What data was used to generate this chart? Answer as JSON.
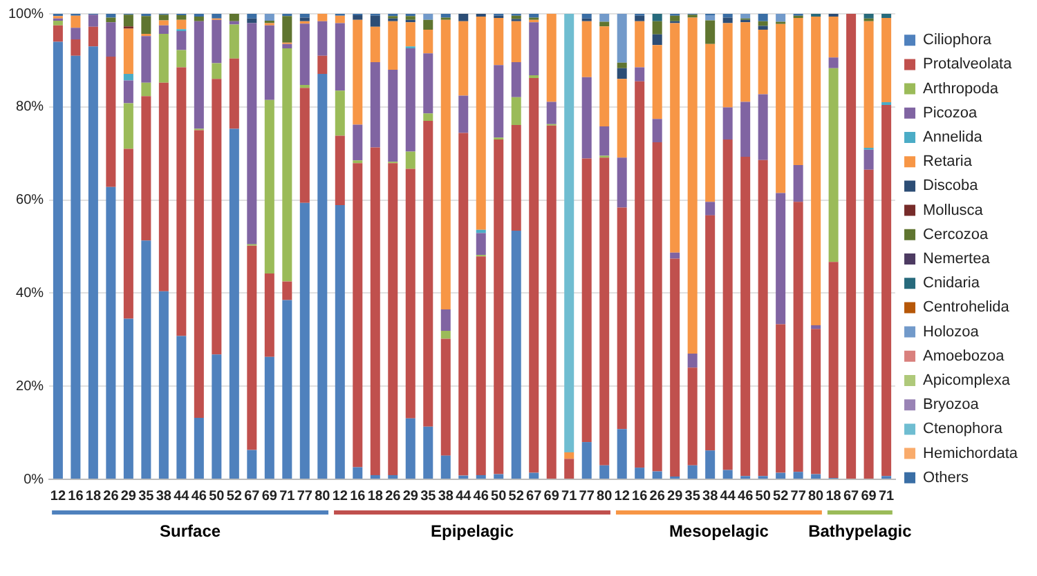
{
  "chart_data": {
    "type": "bar",
    "stacked": true,
    "categories": [
      "12",
      "16",
      "18",
      "26",
      "29",
      "35",
      "38",
      "44",
      "46",
      "50",
      "52",
      "67",
      "69",
      "71",
      "77",
      "80",
      "12",
      "16",
      "18",
      "26",
      "29",
      "35",
      "38",
      "44",
      "46",
      "50",
      "52",
      "67",
      "69",
      "71",
      "77",
      "80",
      "12",
      "16",
      "26",
      "29",
      "35",
      "38",
      "44",
      "46",
      "50",
      "52",
      "77",
      "80",
      "18",
      "67",
      "69",
      "71"
    ],
    "ylim": [
      0,
      100
    ],
    "yticks": [
      {
        "value": 0,
        "label": "0%"
      },
      {
        "value": 20,
        "label": "20%"
      },
      {
        "value": 40,
        "label": "40%"
      },
      {
        "value": 60,
        "label": "60%"
      },
      {
        "value": 80,
        "label": "80%"
      },
      {
        "value": 100,
        "label": "100%"
      }
    ],
    "grid": "y",
    "legend": "right",
    "annotations": [
      "Surface",
      "Epipelagic",
      "Mesopelagic",
      "Bathypelagic"
    ],
    "series": [
      {
        "name": "Ciliophora",
        "color": "#4f81bd",
        "values": [
          94,
          91,
          93,
          62.8,
          34.5,
          51.3,
          40.4,
          30.8,
          13.2,
          26.8,
          75.3,
          6.3,
          26.3,
          38.5,
          59.4,
          87.1,
          58.9,
          2.6,
          0.9,
          0.9,
          13.1,
          11.3,
          5.1,
          0.8,
          0.9,
          1.1,
          53.4,
          1.4,
          0,
          0,
          8,
          3,
          10.8,
          2.5,
          1.7,
          0.6,
          3,
          6.2,
          2,
          0.7,
          0.7,
          1.4,
          1.6,
          1.1,
          0.3,
          0,
          0,
          0.7
        ]
      },
      {
        "name": "Protalveolata",
        "color": "#c0504d",
        "values": [
          3.5,
          3.5,
          4.2,
          28,
          36.5,
          31,
          44.8,
          57.7,
          61.8,
          59.2,
          15.1,
          43.9,
          17.9,
          4,
          24.7,
          3.9,
          14.9,
          65.3,
          70.4,
          67,
          53.6,
          65.7,
          25.1,
          73.6,
          47,
          71.9,
          22.7,
          84.8,
          76,
          4.4,
          60.9,
          66.1,
          47.6,
          83,
          70.7,
          46.8,
          21,
          50.5,
          71,
          68.6,
          67.9,
          31.9,
          58,
          31.2,
          46.4,
          100,
          66.5,
          79.7
        ]
      },
      {
        "name": "Arthropoda",
        "color": "#9bbb59",
        "values": [
          1,
          0,
          0,
          0,
          9.8,
          2.9,
          10.5,
          3.7,
          0.3,
          3.4,
          7.3,
          0.3,
          37.3,
          50.1,
          0.6,
          0,
          9.7,
          0.6,
          0,
          0.3,
          3.7,
          1.6,
          1.7,
          0,
          0.3,
          0.4,
          6,
          0.6,
          0.3,
          0,
          0,
          0.4,
          0,
          0,
          0,
          0,
          0,
          0,
          0,
          0,
          0,
          0,
          0,
          0,
          41.6,
          0,
          0,
          0
        ]
      },
      {
        "name": "Picozoa",
        "color": "#8064a2",
        "values": [
          0.5,
          2.5,
          2.6,
          7.4,
          4.9,
          10,
          1.8,
          4.1,
          23.1,
          9.3,
          0.7,
          47.5,
          16,
          0.9,
          13.2,
          7.4,
          14.5,
          7.7,
          18.3,
          19.8,
          22.2,
          12.9,
          4.6,
          8,
          4.7,
          15.6,
          7.5,
          11.4,
          4.8,
          0,
          17.5,
          6.3,
          10.7,
          3,
          5,
          1.3,
          3,
          2.9,
          6.9,
          11.8,
          14.1,
          28.2,
          7.9,
          0.8,
          2.3,
          0,
          4.3,
          0
        ]
      },
      {
        "name": "Annelida",
        "color": "#4bacc6",
        "values": [
          0,
          0,
          0,
          0,
          1.4,
          0,
          0,
          0.4,
          0,
          0,
          0,
          0,
          0,
          0,
          0,
          0,
          0,
          0,
          0,
          0,
          0.4,
          0,
          0,
          0,
          0.7,
          0,
          0,
          0,
          0,
          0,
          0,
          0,
          0,
          0,
          0,
          0,
          0,
          0,
          0,
          0,
          0,
          0,
          0,
          0,
          0,
          0,
          0.4,
          0.6
        ]
      },
      {
        "name": "Retaria",
        "color": "#f79646",
        "values": [
          0.5,
          2.6,
          0,
          0,
          9.7,
          0.5,
          1.1,
          2,
          0,
          0.3,
          0,
          0,
          0.5,
          0.3,
          0.5,
          1.6,
          1.6,
          22.5,
          7.6,
          10.4,
          5.2,
          5.1,
          62.2,
          16,
          45.8,
          10.1,
          8.8,
          0.5,
          18.9,
          1.4,
          12,
          21.5,
          16.9,
          9.9,
          15.9,
          49.3,
          72.2,
          33.9,
          18.1,
          17.1,
          13.9,
          36.3,
          31.6,
          66.3,
          8.8,
          0,
          27.2,
          18.1
        ]
      },
      {
        "name": "Discoba",
        "color": "#2c4d75",
        "values": [
          0,
          0,
          0,
          0,
          0,
          0,
          0,
          0,
          0,
          0,
          0,
          1,
          0,
          0,
          0.8,
          0,
          0,
          1,
          2.4,
          0.6,
          0.5,
          0,
          0,
          1.6,
          0.6,
          0.5,
          0.5,
          0,
          0,
          0,
          0.6,
          0,
          2.3,
          1.2,
          2.3,
          0.4,
          0,
          0,
          1.2,
          0.5,
          0.8,
          0,
          0,
          0,
          0.6,
          0,
          0,
          0
        ]
      },
      {
        "name": "Mollusca",
        "color": "#772c2a",
        "values": [
          0,
          0,
          0,
          0,
          0.5,
          0,
          0,
          0,
          0,
          0,
          0,
          0,
          0,
          0,
          0,
          0,
          0,
          0,
          0,
          0,
          0,
          0,
          0,
          0,
          0,
          0,
          0,
          0,
          0,
          0,
          0,
          0,
          0,
          0,
          0,
          0,
          0,
          0,
          0,
          0,
          0,
          0,
          0,
          0,
          0,
          0,
          0,
          0
        ]
      },
      {
        "name": "Cercozoa",
        "color": "#5f7530",
        "values": [
          0,
          0,
          0,
          1,
          2.5,
          3.8,
          1.2,
          1,
          1,
          0,
          1.6,
          0,
          0.5,
          5.7,
          0,
          0,
          0,
          0,
          0,
          0.5,
          0.8,
          2.1,
          0.5,
          0,
          0,
          0,
          0.7,
          0.5,
          0,
          0,
          0,
          1,
          1.2,
          0,
          2.8,
          1.2,
          0.6,
          5.1,
          0,
          0.3,
          1,
          0.5,
          0.5,
          0,
          0,
          0,
          0.6,
          0
        ]
      },
      {
        "name": "Nemertea",
        "color": "#4d3b62",
        "values": [
          0,
          0,
          0,
          0,
          0,
          0,
          0,
          0,
          0,
          0,
          0,
          0,
          0,
          0,
          0,
          0,
          0,
          0,
          0,
          0,
          0,
          0,
          0,
          0,
          0,
          0,
          0,
          0,
          0,
          0,
          0,
          0,
          0,
          0,
          0,
          0,
          0,
          0,
          0,
          0,
          0,
          0,
          0,
          0,
          0,
          0,
          0,
          0
        ]
      },
      {
        "name": "Cnidaria",
        "color": "#276a7c",
        "values": [
          0,
          0,
          0,
          0,
          0,
          0,
          0,
          0,
          0,
          0,
          0,
          0,
          0,
          0,
          0,
          0,
          0,
          0,
          0,
          0,
          0,
          0,
          0,
          0,
          0,
          0,
          0,
          0,
          0,
          0,
          0,
          0,
          0,
          0,
          1.6,
          0,
          0,
          0,
          0,
          0,
          0,
          0,
          0,
          0.6,
          0,
          0,
          1,
          0.9
        ]
      },
      {
        "name": "Centrohelida",
        "color": "#b65708",
        "values": [
          0,
          0,
          0,
          0,
          0,
          0,
          0,
          0,
          0,
          0,
          0,
          0,
          0,
          0,
          0,
          0,
          0,
          0,
          0,
          0,
          0,
          0,
          0,
          0,
          0,
          0,
          0,
          0,
          0,
          0,
          0,
          0,
          0,
          0,
          0,
          0,
          0,
          0,
          0,
          0,
          0,
          0,
          0,
          0,
          0,
          0,
          0,
          0
        ]
      },
      {
        "name": "Holozoa",
        "color": "#729aca",
        "values": [
          0,
          0,
          0,
          0,
          0,
          0,
          0,
          0,
          0,
          0,
          0,
          0,
          1.5,
          0,
          0,
          0,
          0,
          0,
          0,
          0,
          0,
          1.3,
          0,
          0,
          0,
          0,
          0,
          0,
          0,
          0,
          0,
          1.7,
          10.5,
          0,
          0,
          0,
          0,
          1.1,
          0,
          1,
          0,
          1.7,
          0,
          0,
          0,
          0,
          0,
          0
        ]
      },
      {
        "name": "Amoebozoa",
        "color": "#d9807d",
        "values": [
          0,
          0,
          0,
          0,
          0,
          0,
          0,
          0,
          0,
          0,
          0,
          0,
          0,
          0,
          0,
          0,
          0,
          0,
          0,
          0,
          0,
          0,
          0,
          0,
          0,
          0,
          0,
          0,
          0,
          0,
          0,
          0,
          0,
          0,
          0,
          0,
          0,
          0,
          0,
          0,
          0,
          0,
          0,
          0,
          0,
          0,
          0,
          0
        ]
      },
      {
        "name": "Apicomplexa",
        "color": "#afc97a",
        "values": [
          0,
          0,
          0,
          0,
          0,
          0,
          0,
          0,
          0,
          0,
          0,
          0,
          0,
          0,
          0,
          0,
          0,
          0,
          0,
          0,
          0,
          0,
          0,
          0,
          0,
          0,
          0,
          0,
          0,
          0,
          0,
          0,
          0,
          0,
          0,
          0,
          0,
          0,
          0,
          0,
          0,
          0,
          0,
          0,
          0,
          0,
          0,
          0
        ]
      },
      {
        "name": "Bryozoa",
        "color": "#9983b5",
        "values": [
          0,
          0,
          0,
          0,
          0,
          0,
          0,
          0,
          0,
          0,
          0,
          0,
          0,
          0,
          0,
          0,
          0,
          0,
          0,
          0,
          0,
          0,
          0,
          0,
          0,
          0,
          0,
          0,
          0,
          0,
          0,
          0,
          0,
          0,
          0,
          0,
          0,
          0,
          0,
          0,
          0,
          0,
          0,
          0,
          0,
          0,
          0,
          0
        ]
      },
      {
        "name": "Ctenophora",
        "color": "#6fbdd1",
        "values": [
          0,
          0,
          0,
          0,
          0,
          0,
          0,
          0,
          0,
          0,
          0,
          0,
          0,
          0,
          0,
          0,
          0,
          0,
          0,
          0,
          0,
          0,
          0,
          0,
          0,
          0,
          0,
          0,
          0,
          94.2,
          0,
          0,
          0,
          0,
          0,
          0,
          0,
          0,
          0,
          0,
          0,
          0,
          0,
          0,
          0,
          0,
          0,
          0
        ]
      },
      {
        "name": "Hemichordata",
        "color": "#f9ab6b",
        "values": [
          0,
          0,
          0,
          0,
          0,
          0,
          0,
          0,
          0,
          0,
          0,
          0,
          0,
          0,
          0,
          0,
          0,
          0,
          0,
          0,
          0,
          0,
          0,
          0,
          0,
          0,
          0,
          0,
          0,
          0,
          0,
          0,
          0,
          0,
          0,
          0,
          0,
          0,
          0,
          0,
          0,
          0,
          0,
          0,
          0,
          0,
          0,
          0
        ]
      },
      {
        "name": "Others",
        "color": "#3a6ea5",
        "values": [
          0.5,
          0.4,
          0.2,
          0.8,
          0.2,
          0.5,
          0.2,
          0.3,
          0.6,
          1,
          0,
          1,
          0,
          0.5,
          0.8,
          0,
          0.4,
          0.3,
          0.4,
          0.5,
          0.5,
          0,
          0.8,
          0,
          0,
          0.4,
          0.4,
          0.8,
          0,
          0,
          1,
          0,
          0,
          0.4,
          0,
          0.4,
          0.2,
          0.3,
          0.8,
          0,
          1.6,
          0,
          0.4,
          0,
          0,
          0,
          0,
          0
        ]
      }
    ]
  }
}
